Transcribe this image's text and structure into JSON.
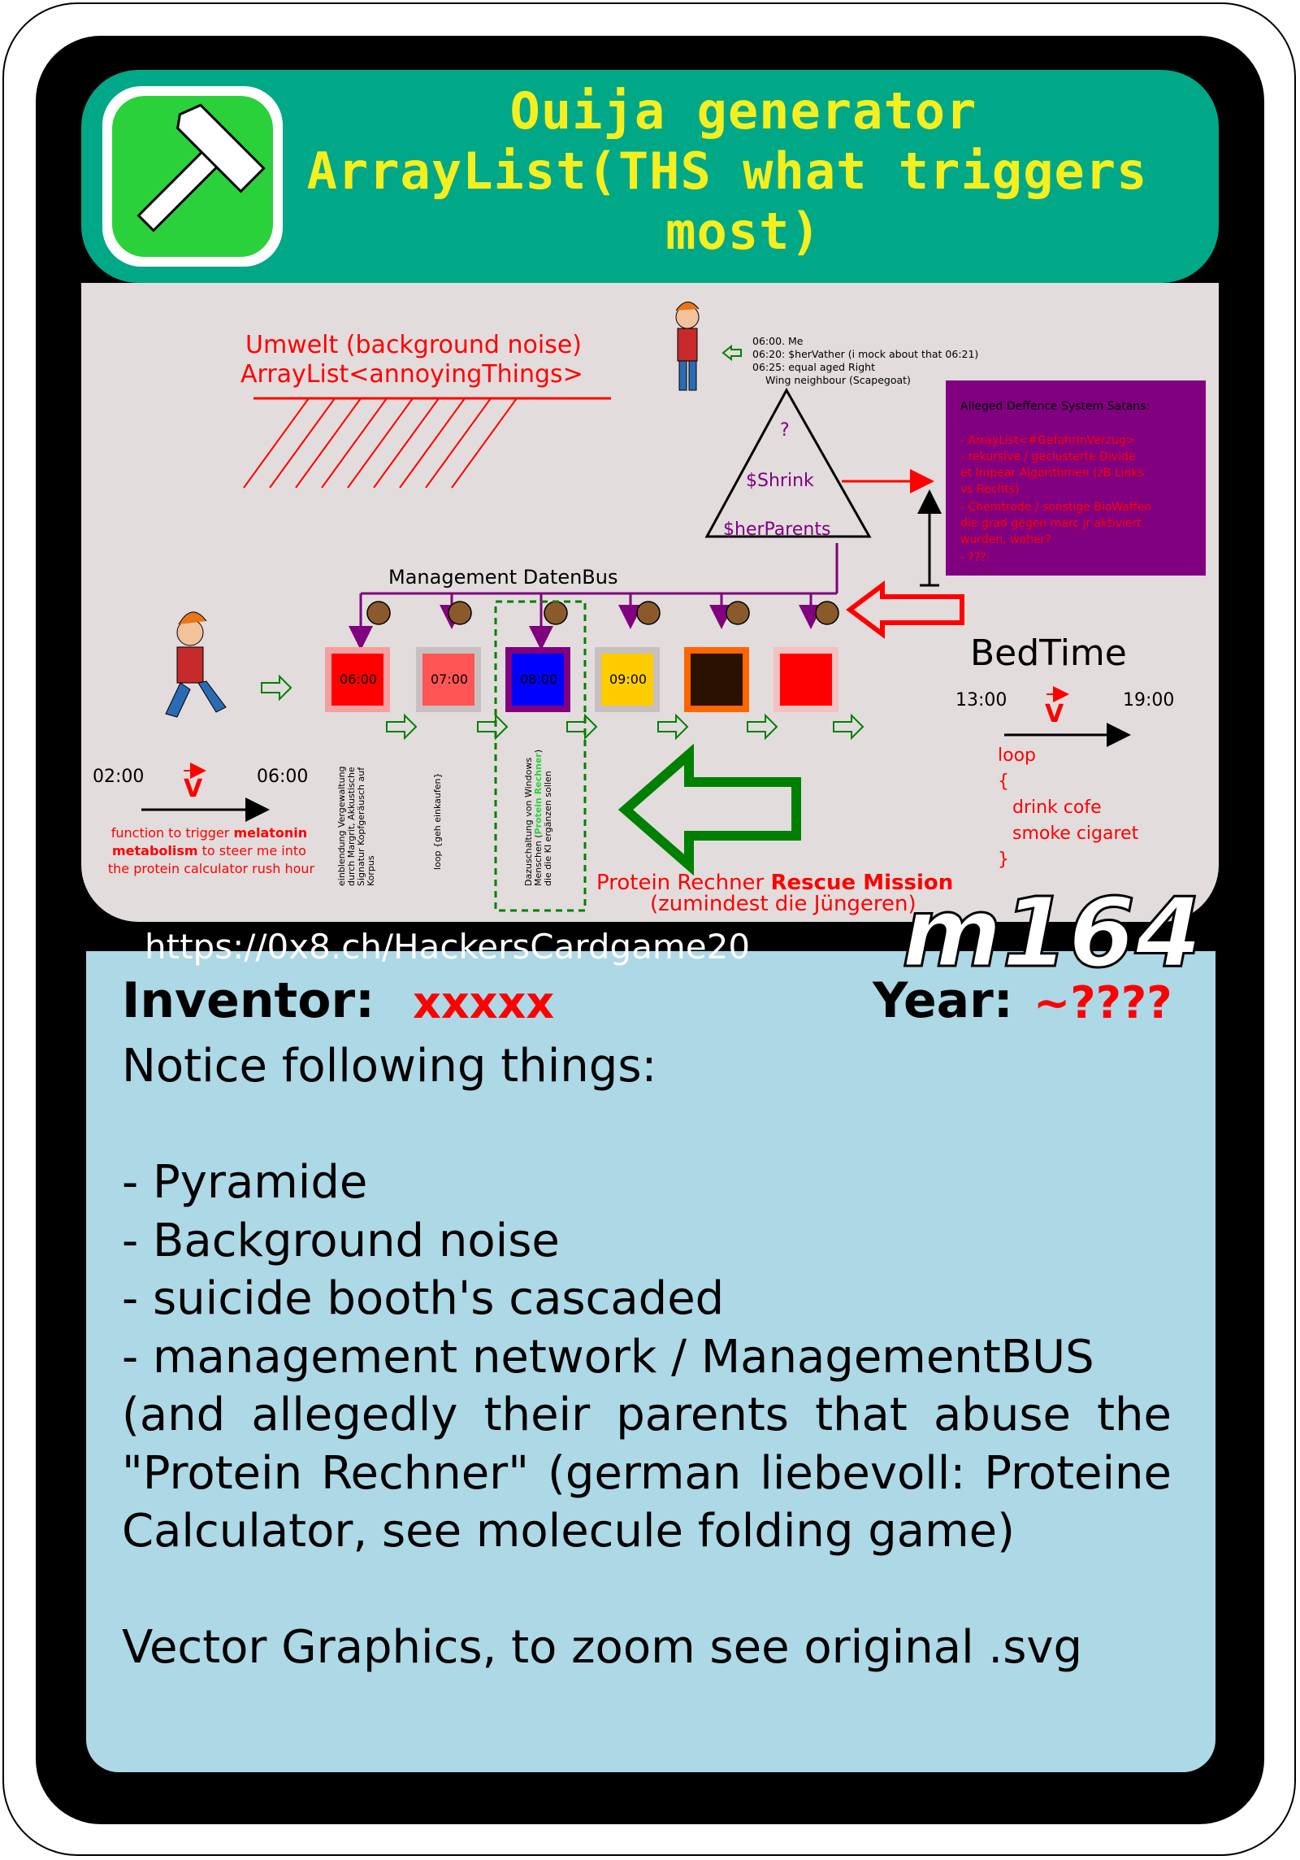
{
  "card": {
    "title_lines": [
      "Ouija generator",
      "ArrayList(THS what triggers",
      "most)"
    ],
    "header_icon": "hammer-icon",
    "url": "https://0x8.ch/HackersCardgame20",
    "card_id": "m164",
    "inventor_label": "Inventor:",
    "inventor_value": "xxxxx",
    "year_label": "Year:",
    "year_value": "~????",
    "body_lines": [
      "Notice following things:",
      "",
      "- Pyramide",
      "- Background noise",
      "- suicide booth's cascaded",
      "- management network / ManagementBUS",
      "(and allegedly their parents that abuse the \"Protein Rechner\" (german liebevoll: Proteine Calculator, see molecule folding game)",
      "",
      "Vector Graphics, to zoom see original .svg"
    ]
  },
  "diagram": {
    "umwelt_line1": "Umwelt (background noise)",
    "umwelt_line2": "ArrayList<annoyingThings>",
    "schedule": [
      "06:00. Me",
      "06:20: $herVather (i mock about that 06:21)",
      "06:25: equal aged Right",
      "Wing neighbour (Scapegoat)"
    ],
    "pyramid_top": "?",
    "pyramid_mid": "$Shrink",
    "pyramid_base": "$herParents",
    "defence_title": "Alleged Deffence System Satans:",
    "defence_lines": [
      "- ArrayList<#GefahrInVerzug>",
      "- rekursive / geclusterte Divide",
      "et Impear Algorithmen (zB Links",
      "vs Rechts)",
      "- Chemtrode / sonstige BioWaffen",
      "die grad gegen marc jr aktiviert",
      "wurden, woher?",
      "- ???"
    ],
    "bus_label": "Management DatenBus",
    "boxes": [
      {
        "label": "06:00",
        "color": "#ff0000",
        "border": "#f4a0a0"
      },
      {
        "label": "07:00",
        "color": "#ff5555",
        "border": "#c8c0c0"
      },
      {
        "label": "08:00",
        "color": "#0000ff",
        "border": "#800080"
      },
      {
        "label": "09:00",
        "color": "#ffcc00",
        "border": "#c8c0c0"
      },
      {
        "label": "",
        "color": "#2b1100",
        "border": "#ff6600"
      },
      {
        "label": "",
        "color": "#ff0000",
        "border": "#f4c0c0"
      }
    ],
    "bedtime": "BedTime",
    "time_13": "13:00",
    "time_19": "19:00",
    "vector_symbol": "V",
    "loop_lines": [
      "loop",
      "{",
      "drink cofe",
      "smoke cigaret",
      "}"
    ],
    "time_02": "02:00",
    "time_06": "06:00",
    "func_pre": "function to trigger ",
    "func_bold1": "melatonin",
    "func_bold2": "metabolism",
    "func_mid": " to steer me into",
    "func_line3": "the protein calculator rush hour",
    "vert1": [
      "einblendung Vergewaltung",
      "durch Margrit, Akkustische",
      "Signatur Kopfgeräusch auf",
      "Korpus"
    ],
    "vert2": [
      "loop {geh einkaufen}"
    ],
    "vert3_pre": "Dazuschaltung von Windows",
    "vert3_line2_a": "Menschen (",
    "vert3_line2_b": "Protein Rechner",
    "vert3_line2_c": ")",
    "vert3_line3": "die die KI ergänzen sollen",
    "rescue_a": "Protein Rechner ",
    "rescue_b": "Rescue Mission",
    "rescue_c": "(zumindest die Jüngeren)"
  }
}
